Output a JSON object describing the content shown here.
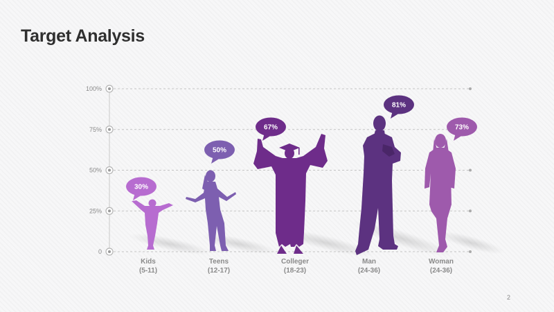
{
  "slide": {
    "title": "Target Analysis",
    "page_number": "2"
  },
  "chart_data": {
    "type": "bar",
    "title": "Target Analysis",
    "xlabel": "",
    "ylabel": "",
    "ylim": [
      0,
      100
    ],
    "yticks": [
      {
        "value": 0,
        "label": "0"
      },
      {
        "value": 25,
        "label": "25%"
      },
      {
        "value": 50,
        "label": "50%"
      },
      {
        "value": 75,
        "label": "75%"
      },
      {
        "value": 100,
        "label": "100%"
      }
    ],
    "grid": true,
    "categories": [
      {
        "key": "kids",
        "name": "Kids",
        "range": "(5-11)",
        "value": 30,
        "label": "30%",
        "color": "#b76cd0",
        "figure": "child-silhouette"
      },
      {
        "key": "teens",
        "name": "Teens",
        "range": "(12-17)",
        "value": 50,
        "label": "50%",
        "color": "#7d5fb0",
        "figure": "teen-girl-silhouette"
      },
      {
        "key": "colleger",
        "name": "Colleger",
        "range": "(18-23)",
        "value": 67,
        "label": "67%",
        "color": "#6e2c8a",
        "figure": "graduate-silhouette"
      },
      {
        "key": "man",
        "name": "Man",
        "range": "(24-36)",
        "value": 81,
        "label": "81%",
        "color": "#5c3280",
        "figure": "businessman-silhouette"
      },
      {
        "key": "woman",
        "name": "Woman",
        "range": "(24-36)",
        "value": 73,
        "label": "73%",
        "color": "#9e5aac",
        "figure": "businesswoman-silhouette"
      }
    ]
  }
}
